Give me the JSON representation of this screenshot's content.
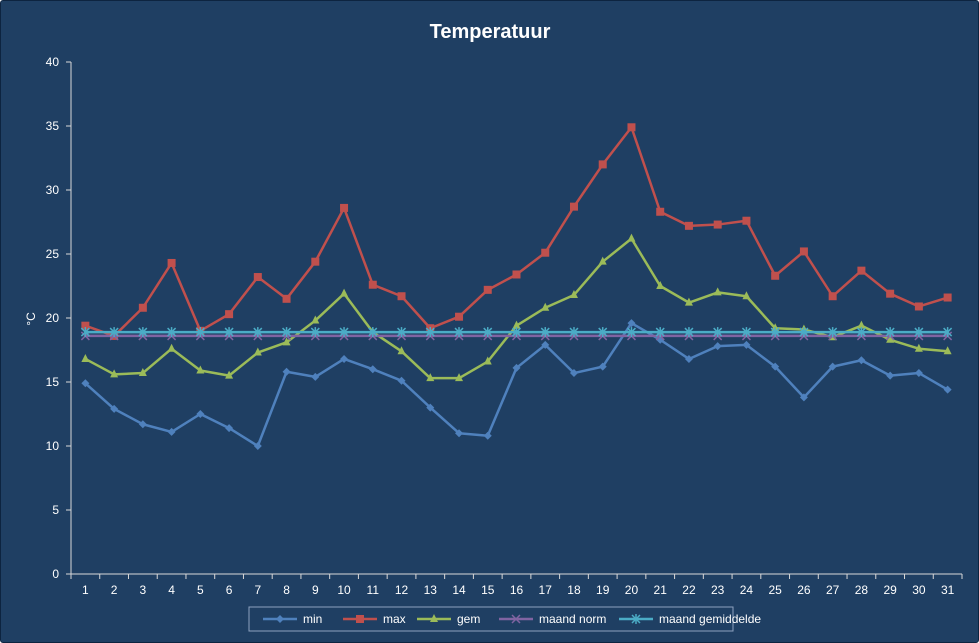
{
  "chart_data": {
    "type": "line",
    "title": "Temperatuur",
    "xlabel": "",
    "ylabel": "°C",
    "ylim": [
      0,
      40
    ],
    "yticks": [
      0,
      5,
      10,
      15,
      20,
      25,
      30,
      35,
      40
    ],
    "x": [
      1,
      2,
      3,
      4,
      5,
      6,
      7,
      8,
      9,
      10,
      11,
      12,
      13,
      14,
      15,
      16,
      17,
      18,
      19,
      20,
      21,
      22,
      23,
      24,
      25,
      26,
      27,
      28,
      29,
      30,
      31
    ],
    "grid": false,
    "legend": "bottom",
    "series": [
      {
        "name": "min",
        "color": "#4f81bd",
        "marker": "diamond",
        "values": [
          14.9,
          12.9,
          11.7,
          11.1,
          12.5,
          11.4,
          10.0,
          15.8,
          15.4,
          16.8,
          16.0,
          15.1,
          13.0,
          11.0,
          10.8,
          16.1,
          17.9,
          15.7,
          16.2,
          19.6,
          18.3,
          16.8,
          17.8,
          17.9,
          16.2,
          13.8,
          16.2,
          16.7,
          15.5,
          15.7,
          14.4
        ]
      },
      {
        "name": "max",
        "color": "#c0504d",
        "marker": "square",
        "values": [
          19.4,
          18.6,
          20.8,
          24.3,
          19.0,
          20.3,
          23.2,
          21.5,
          24.4,
          28.6,
          22.6,
          21.7,
          19.2,
          20.1,
          22.2,
          23.4,
          25.1,
          28.7,
          32.0,
          34.9,
          28.3,
          27.2,
          27.3,
          27.6,
          23.3,
          25.2,
          21.7,
          23.7,
          21.9,
          20.9,
          21.6
        ]
      },
      {
        "name": "gem",
        "color": "#9bbb59",
        "marker": "triangle",
        "values": [
          16.8,
          15.6,
          15.7,
          17.6,
          15.9,
          15.5,
          17.3,
          18.1,
          19.8,
          21.9,
          18.9,
          17.4,
          15.3,
          15.3,
          16.6,
          19.4,
          20.8,
          21.8,
          24.4,
          26.2,
          22.5,
          21.2,
          22.0,
          21.7,
          19.2,
          19.1,
          18.5,
          19.4,
          18.3,
          17.6,
          17.4
        ]
      },
      {
        "name": "maand norm",
        "color": "#8064a2",
        "marker": "x",
        "values": [
          18.6,
          18.6,
          18.6,
          18.6,
          18.6,
          18.6,
          18.6,
          18.6,
          18.6,
          18.6,
          18.6,
          18.6,
          18.6,
          18.6,
          18.6,
          18.6,
          18.6,
          18.6,
          18.6,
          18.6,
          18.6,
          18.6,
          18.6,
          18.6,
          18.6,
          18.6,
          18.6,
          18.6,
          18.6,
          18.6,
          18.6
        ]
      },
      {
        "name": "maand gemiddelde",
        "color": "#4bacc6",
        "marker": "star",
        "values": [
          18.9,
          18.9,
          18.9,
          18.9,
          18.9,
          18.9,
          18.9,
          18.9,
          18.9,
          18.9,
          18.9,
          18.9,
          18.9,
          18.9,
          18.9,
          18.9,
          18.9,
          18.9,
          18.9,
          18.9,
          18.9,
          18.9,
          18.9,
          18.9,
          18.9,
          18.9,
          18.9,
          18.9,
          18.9,
          18.9,
          18.9
        ]
      }
    ]
  }
}
